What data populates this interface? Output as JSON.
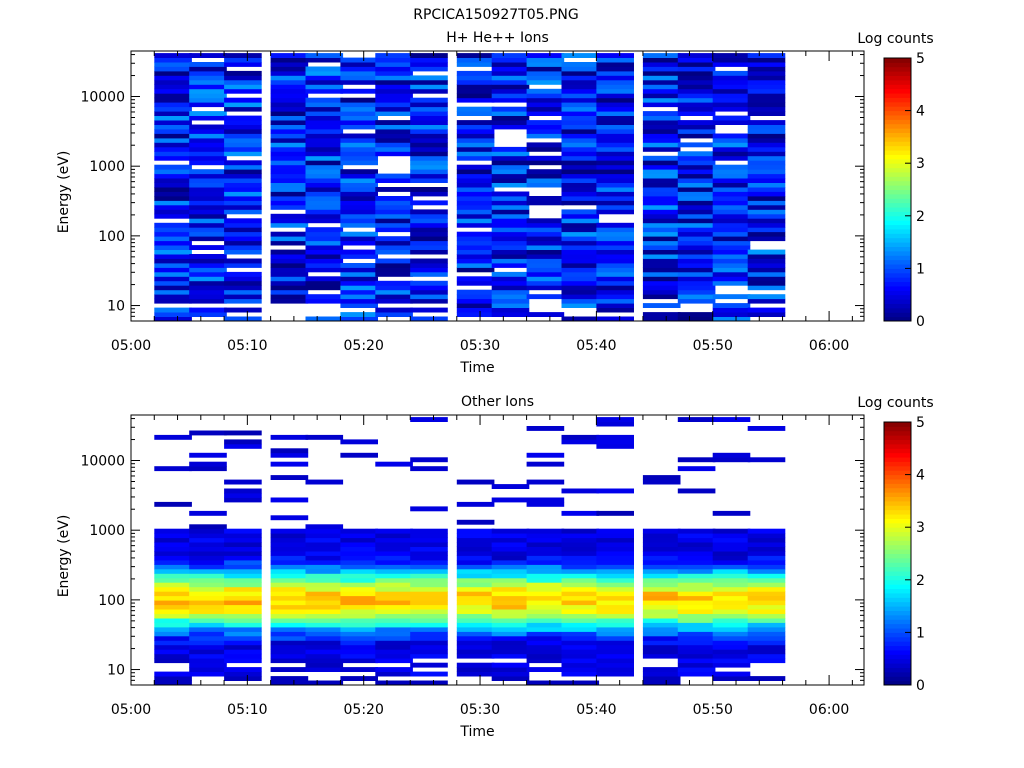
{
  "page_title": "RPCICA150927T05.PNG",
  "colormap": [
    "#00007f",
    "#0000ff",
    "#007fff",
    "#00ffff",
    "#7fff7f",
    "#ffff00",
    "#ff7f00",
    "#ff0000",
    "#7f0000"
  ],
  "chart_data": [
    {
      "type": "heatmap",
      "title": "H+ He++ Ions",
      "xlabel": "Time",
      "ylabel": "Energy (eV)",
      "y_scale": "log",
      "ylim": [
        6,
        45000
      ],
      "y_ticks": [
        10,
        100,
        1000,
        10000
      ],
      "y_tick_labels": [
        "10",
        "100",
        "1000",
        "10000"
      ],
      "xlim": [
        "05:00",
        "06:03"
      ],
      "x_ticks": [
        "05:00",
        "05:10",
        "05:20",
        "05:30",
        "05:40",
        "05:50",
        "06:00"
      ],
      "time_bins_start": [
        "05:02",
        "05:05",
        "05:08",
        "05:12",
        "05:15",
        "05:18",
        "05:21",
        "05:24",
        "05:28",
        "05:31",
        "05:34",
        "05:37",
        "05:40",
        "05:44",
        "05:47",
        "05:50",
        "05:53"
      ],
      "time_bin_width_min": 3.2,
      "energy_range_eV": [
        6,
        42000
      ],
      "energy_channels": 60,
      "value_range_log_counts": [
        0,
        1.4
      ],
      "colorbar": {
        "label": "Log counts",
        "min": 0,
        "max": 5,
        "tick_labels": [
          "0",
          "1",
          "2",
          "3",
          "4",
          "5"
        ]
      }
    },
    {
      "type": "heatmap",
      "title": "Other Ions",
      "xlabel": "Time",
      "ylabel": "Energy (eV)",
      "y_scale": "log",
      "ylim": [
        6,
        45000
      ],
      "y_ticks": [
        10,
        100,
        1000,
        10000
      ],
      "y_tick_labels": [
        "10",
        "100",
        "1000",
        "10000"
      ],
      "xlim": [
        "05:00",
        "06:03"
      ],
      "x_ticks": [
        "05:00",
        "05:10",
        "05:20",
        "05:30",
        "05:40",
        "05:50",
        "06:00"
      ],
      "time_bins_start": [
        "05:02",
        "05:05",
        "05:08",
        "05:12",
        "05:15",
        "05:18",
        "05:21",
        "05:24",
        "05:28",
        "05:31",
        "05:34",
        "05:37",
        "05:40",
        "05:44",
        "05:47",
        "05:50",
        "05:53"
      ],
      "time_bin_width_min": 3.2,
      "energy_range_eV": [
        6,
        42000
      ],
      "energy_channels": 60,
      "peak_energy_eV": 100,
      "peak_log_counts": 3.4,
      "colorbar": {
        "label": "Log counts",
        "min": 0,
        "max": 5,
        "tick_labels": [
          "0",
          "1",
          "2",
          "3",
          "4",
          "5"
        ]
      }
    }
  ]
}
